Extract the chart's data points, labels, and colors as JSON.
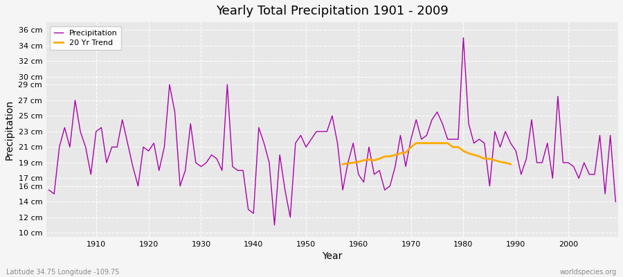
{
  "title": "Yearly Total Precipitation 1901 - 2009",
  "xlabel": "Year",
  "ylabel": "Precipitation",
  "x_start": 1901,
  "x_end": 2009,
  "background_color": "#f5f5f5",
  "plot_bg_color": "#e8e8e8",
  "precip_color": "#aa00aa",
  "trend_color": "#ffaa00",
  "precip_label": "Precipitation",
  "trend_label": "20 Yr Trend",
  "yticks": [
    10,
    12,
    14,
    16,
    17,
    19,
    21,
    23,
    25,
    27,
    29,
    30,
    32,
    34,
    36
  ],
  "ytick_labels": [
    "10 cm",
    "12 cm",
    "14 cm",
    "16 cm",
    "17 cm",
    "19 cm",
    "21 cm",
    "23 cm",
    "25 cm",
    "27 cm",
    "29 cm",
    "30 cm",
    "32 cm",
    "34 cm",
    "36 cm"
  ],
  "xticks": [
    1910,
    1920,
    1930,
    1940,
    1950,
    1960,
    1970,
    1980,
    1990,
    2000
  ],
  "ylim": [
    9.5,
    37
  ],
  "xlim": [
    1900.5,
    2009.5
  ],
  "footer_left": "Latitude 34.75 Longitude -109.75",
  "footer_right": "worldspecies.org",
  "precipitation": [
    15.5,
    15.0,
    21.0,
    23.5,
    21.0,
    27.0,
    23.0,
    21.0,
    17.5,
    23.0,
    23.5,
    19.0,
    21.0,
    21.0,
    24.5,
    21.5,
    18.5,
    16.0,
    21.0,
    20.5,
    21.5,
    18.0,
    21.0,
    29.0,
    25.5,
    16.0,
    18.0,
    24.0,
    19.0,
    18.5,
    19.0,
    20.0,
    19.5,
    18.0,
    29.0,
    18.5,
    18.0,
    18.0,
    13.0,
    12.5,
    23.5,
    21.5,
    19.0,
    11.0,
    20.0,
    15.5,
    12.0,
    21.5,
    22.5,
    21.0,
    22.0,
    23.0,
    23.0,
    23.0,
    25.0,
    21.5,
    15.5,
    19.0,
    21.5,
    17.5,
    16.5,
    21.0,
    17.5,
    18.0,
    15.5,
    16.0,
    18.5,
    22.5,
    18.5,
    22.0,
    24.5,
    22.0,
    22.5,
    24.5,
    25.5,
    24.0,
    22.0,
    22.0,
    22.0,
    35.0,
    24.0,
    21.5,
    22.0,
    21.5,
    16.0,
    23.0,
    21.0,
    23.0,
    21.5,
    20.5,
    17.5,
    19.5,
    24.5,
    19.0,
    19.0,
    21.5,
    17.0,
    27.5,
    19.0,
    19.0,
    18.5,
    17.0,
    19.0,
    17.5,
    17.5,
    22.5,
    15.0,
    22.5,
    14.0
  ],
  "trend_start_year": 1957,
  "trend_values": [
    18.8,
    18.9,
    19.0,
    19.1,
    19.3,
    19.4,
    19.3,
    19.5,
    19.8,
    19.8,
    20.0,
    20.2,
    20.3,
    21.0,
    21.5,
    21.5,
    21.5,
    21.5,
    21.5,
    21.5,
    21.5,
    21.0,
    21.0,
    20.5,
    20.2,
    20.0,
    19.8,
    19.5,
    19.5,
    19.3,
    19.1,
    19.0,
    18.8
  ]
}
